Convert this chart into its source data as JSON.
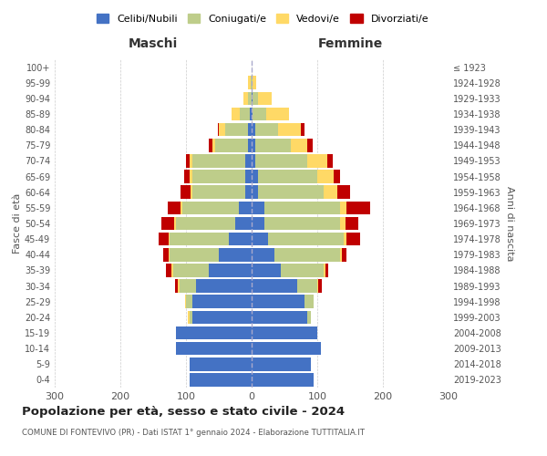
{
  "age_groups": [
    "0-4",
    "5-9",
    "10-14",
    "15-19",
    "20-24",
    "25-29",
    "30-34",
    "35-39",
    "40-44",
    "45-49",
    "50-54",
    "55-59",
    "60-64",
    "65-69",
    "70-74",
    "75-79",
    "80-84",
    "85-89",
    "90-94",
    "95-99",
    "100+"
  ],
  "birth_years": [
    "2019-2023",
    "2014-2018",
    "2009-2013",
    "2004-2008",
    "1999-2003",
    "1994-1998",
    "1989-1993",
    "1984-1988",
    "1979-1983",
    "1974-1978",
    "1969-1973",
    "1964-1968",
    "1959-1963",
    "1954-1958",
    "1949-1953",
    "1944-1948",
    "1939-1943",
    "1934-1938",
    "1929-1933",
    "1924-1928",
    "≤ 1923"
  ],
  "male": {
    "celibi": [
      95,
      95,
      115,
      115,
      90,
      90,
      85,
      65,
      50,
      35,
      25,
      20,
      10,
      10,
      10,
      5,
      5,
      3,
      0,
      0,
      0
    ],
    "coniugati": [
      0,
      0,
      0,
      0,
      5,
      10,
      25,
      55,
      75,
      90,
      90,
      85,
      80,
      80,
      80,
      50,
      35,
      15,
      5,
      2,
      0
    ],
    "vedovi": [
      0,
      0,
      0,
      0,
      2,
      2,
      2,
      2,
      2,
      2,
      3,
      3,
      3,
      5,
      5,
      5,
      10,
      12,
      8,
      3,
      0
    ],
    "divorziati": [
      0,
      0,
      0,
      0,
      0,
      0,
      5,
      8,
      8,
      15,
      20,
      20,
      15,
      8,
      5,
      5,
      2,
      0,
      0,
      0,
      0
    ]
  },
  "female": {
    "nubili": [
      95,
      90,
      105,
      100,
      85,
      80,
      70,
      45,
      35,
      25,
      20,
      20,
      10,
      10,
      5,
      5,
      5,
      2,
      2,
      0,
      0
    ],
    "coniugate": [
      0,
      0,
      0,
      0,
      5,
      15,
      30,
      65,
      100,
      115,
      115,
      115,
      100,
      90,
      80,
      55,
      35,
      20,
      8,
      2,
      0
    ],
    "vedove": [
      0,
      0,
      0,
      0,
      0,
      0,
      2,
      2,
      2,
      5,
      8,
      10,
      20,
      25,
      30,
      25,
      35,
      35,
      20,
      5,
      0
    ],
    "divorziate": [
      0,
      0,
      0,
      0,
      0,
      0,
      5,
      5,
      8,
      20,
      20,
      35,
      20,
      10,
      8,
      8,
      5,
      0,
      0,
      0,
      0
    ]
  },
  "colors": {
    "celibi_nubili": "#4472C4",
    "coniugati": "#BECD8A",
    "vedovi": "#FFD966",
    "divorziati": "#C00000"
  },
  "title": "Popolazione per età, sesso e stato civile - 2024",
  "subtitle": "COMUNE DI FONTEVIVO (PR) - Dati ISTAT 1° gennaio 2024 - Elaborazione TUTTITALIA.IT",
  "xlabel_left": "Maschi",
  "xlabel_right": "Femmine",
  "ylabel_left": "Fasce di età",
  "ylabel_right": "Anni di nascita",
  "xlim": 300,
  "legend_labels": [
    "Celibi/Nubili",
    "Coniugati/e",
    "Vedovi/e",
    "Divorziati/e"
  ],
  "bg_color": "#ffffff",
  "grid_color": "#cccccc"
}
